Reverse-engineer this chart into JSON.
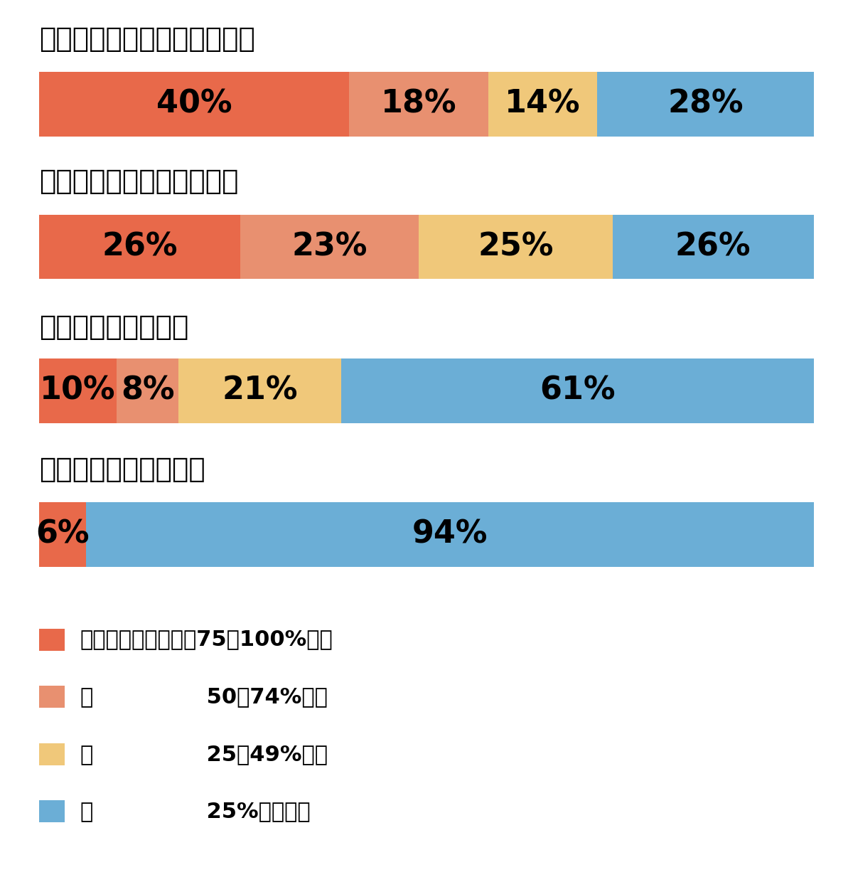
{
  "rows": [
    {
      "title": "再配達はほとんどなくなった",
      "values": [
        40,
        18,
        14,
        28
      ]
    },
    {
      "title": "再配達は半分以下になった",
      "values": [
        26,
        23,
        25,
        26
      ]
    },
    {
      "title": "再配達は少し減った",
      "values": [
        10,
        8,
        21,
        61
      ]
    },
    {
      "title": "再配達は減らなかった",
      "values": [
        6,
        0,
        0,
        94
      ]
    }
  ],
  "colors": [
    "#E8694A",
    "#E89070",
    "#F0C87A",
    "#6BAED6"
  ],
  "background_color": "#FFFFFF",
  "title_fontsize": 28,
  "value_fontsize": 32,
  "legend_fontsize": 22,
  "legend_labels": [
    "置き配の指定割合ぇ75～100%の人",
    "〃               50～74%の人",
    "〃               25～49%の人",
    "〃               25%未満の人"
  ]
}
